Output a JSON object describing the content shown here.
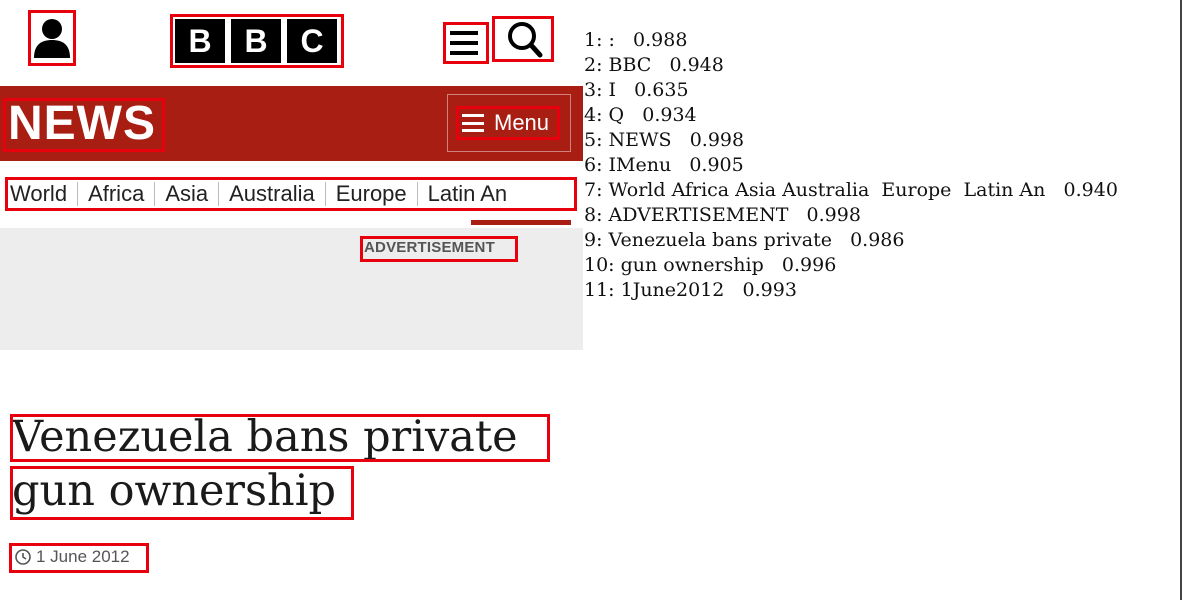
{
  "header": {
    "logo_letters": [
      "B",
      "B",
      "C"
    ],
    "account_icon": "person-icon",
    "hamburger_icon": "hamburger-icon",
    "search_icon": "search-icon"
  },
  "newsbar": {
    "title": "NEWS",
    "menu_label": "Menu",
    "background_color": "#a81e13"
  },
  "nav": {
    "items": [
      "World",
      "Africa",
      "Asia",
      "Australia",
      "Europe",
      "Latin An"
    ]
  },
  "ad": {
    "label": "ADVERTISEMENT"
  },
  "article": {
    "headline_line1": "Venezuela bans private",
    "headline_line2": "gun ownership",
    "date": "1 June 2012"
  },
  "ocr": {
    "rows": [
      "1: :   0.988",
      "2: BBC   0.948",
      "3: I   0.635",
      "4: Q   0.934",
      "5: NEWS   0.998",
      "6: IMenu   0.905",
      "7: World Africa Asia Australia  Europe  Latin An   0.940",
      "8: ADVERTISEMENT   0.998",
      "9: Venezuela bans private   0.986",
      "10: gun ownership   0.996",
      "11: 1June2012   0.993"
    ]
  },
  "colors": {
    "box": "#e8000d",
    "accent": "#a81e13"
  }
}
